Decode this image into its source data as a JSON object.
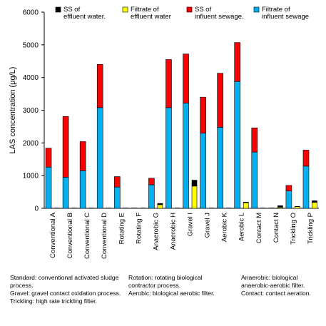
{
  "chart_data": {
    "type": "bar",
    "stacked": true,
    "ylabel": "LAS concentration (μg/L)",
    "ylim": [
      0,
      6000
    ],
    "yticks": [
      0,
      1000,
      2000,
      3000,
      4000,
      5000,
      6000
    ],
    "grid": false,
    "legend_placement": "top",
    "groups": [
      {
        "label": "Conventional  A",
        "influent_filtrate": 1260,
        "influent_ss": 580,
        "effluent_filtrate": 0,
        "effluent_ss": 0
      },
      {
        "label": "Conventional  B",
        "influent_filtrate": 950,
        "influent_ss": 1860,
        "effluent_filtrate": 0,
        "effluent_ss": 0
      },
      {
        "label": "Conventional  C",
        "influent_filtrate": 1150,
        "influent_ss": 890,
        "effluent_filtrate": 0,
        "effluent_ss": 0
      },
      {
        "label": "Conventional  D",
        "influent_filtrate": 3080,
        "influent_ss": 1320,
        "effluent_filtrate": 0,
        "effluent_ss": 0
      },
      {
        "label": "Rotating  E",
        "influent_filtrate": 650,
        "influent_ss": 320,
        "effluent_filtrate": 0,
        "effluent_ss": 0
      },
      {
        "label": "Rotating  F",
        "influent_filtrate": 0,
        "influent_ss": 0,
        "effluent_filtrate": 0,
        "effluent_ss": 0
      },
      {
        "label": "Anaerobic  G",
        "influent_filtrate": 720,
        "influent_ss": 200,
        "effluent_filtrate": 110,
        "effluent_ss": 40
      },
      {
        "label": "Anaerobic  H",
        "influent_filtrate": 3080,
        "influent_ss": 1470,
        "effluent_filtrate": 0,
        "effluent_ss": 0
      },
      {
        "label": "Gravel  I",
        "influent_filtrate": 3220,
        "influent_ss": 1500,
        "effluent_filtrate": 680,
        "effluent_ss": 180
      },
      {
        "label": "Gravel  J",
        "influent_filtrate": 2300,
        "influent_ss": 1100,
        "effluent_filtrate": 0,
        "effluent_ss": 0
      },
      {
        "label": "Aerobic  K",
        "influent_filtrate": 2480,
        "influent_ss": 1650,
        "effluent_filtrate": 0,
        "effluent_ss": 0
      },
      {
        "label": "Aerobic  L",
        "influent_filtrate": 3880,
        "influent_ss": 1190,
        "effluent_filtrate": 170,
        "effluent_ss": 20
      },
      {
        "label": "Contact  M",
        "influent_filtrate": 1720,
        "influent_ss": 740,
        "effluent_filtrate": 0,
        "effluent_ss": 0
      },
      {
        "label": "Contact  N",
        "influent_filtrate": 0,
        "influent_ss": 0,
        "effluent_filtrate": 30,
        "effluent_ss": 50
      },
      {
        "label": "Trickling  O",
        "influent_filtrate": 530,
        "influent_ss": 170,
        "effluent_filtrate": 50,
        "effluent_ss": 10
      },
      {
        "label": "Trickling  P",
        "influent_filtrate": 1290,
        "influent_ss": 490,
        "effluent_filtrate": 180,
        "effluent_ss": 50
      }
    ],
    "legend": [
      {
        "key": "effluent_ss",
        "label": "SS of effluent water.",
        "color": "#000000"
      },
      {
        "key": "effluent_filtrate",
        "label": "Filtrate of effluent water",
        "color": "#ffff00"
      },
      {
        "key": "influent_ss",
        "label": "SS of influent sewage.",
        "color": "#ff0000"
      },
      {
        "key": "influent_filtrate",
        "label": "Filtrate of influent sewage",
        "color": "#00b0f0"
      }
    ]
  },
  "notes": [
    "Standard: conventional activated sludge process.\nGravel: gravel contact oxidation process.\nTrickling: high rate trickling filter.",
    "Rotation: rotating biological contractor process.\nAerobic: biological aerobic filter.",
    "Anaerobic: biological anaerobic-aerobic filter.\nContact: contact aeration."
  ]
}
